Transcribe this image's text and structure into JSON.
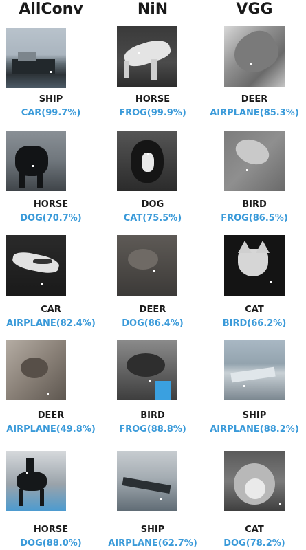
{
  "columns": [
    "AllConv",
    "NiN",
    "VGG"
  ],
  "rows": [
    [
      {
        "true_label": "SHIP",
        "predicted": "CAR(99.7%)",
        "scene": "ship-harbor"
      },
      {
        "true_label": "HORSE",
        "predicted": "FROG(99.9%)",
        "scene": "white-horse"
      },
      {
        "true_label": "DEER",
        "predicted": "AIRPLANE(85.3%)",
        "scene": "deer-closeup"
      }
    ],
    [
      {
        "true_label": "HORSE",
        "predicted": "DOG(70.7%)",
        "scene": "dark-horse"
      },
      {
        "true_label": "DOG",
        "predicted": "CAT(75.5%)",
        "scene": "black-white-dog"
      },
      {
        "true_label": "BIRD",
        "predicted": "FROG(86.5%)",
        "scene": "bird-head"
      }
    ],
    [
      {
        "true_label": "CAR",
        "predicted": "AIRPLANE(82.4%)",
        "scene": "white-car"
      },
      {
        "true_label": "DEER",
        "predicted": "DOG(86.4%)",
        "scene": "blurry-deer"
      },
      {
        "true_label": "CAT",
        "predicted": "BIRD(66.2%)",
        "scene": "cat-face-dark"
      }
    ],
    [
      {
        "true_label": "DEER",
        "predicted": "AIRPLANE(49.8%)",
        "scene": "deer-in-brush"
      },
      {
        "true_label": "BIRD",
        "predicted": "FROG(88.8%)",
        "scene": "bird-blue-patch"
      },
      {
        "true_label": "SHIP",
        "predicted": "AIRPLANE(88.2%)",
        "scene": "ship-at-sea"
      }
    ],
    [
      {
        "true_label": "HORSE",
        "predicted": "DOG(88.0%)",
        "scene": "horse-rider"
      },
      {
        "true_label": "SHIP",
        "predicted": "AIRPLANE(62.7%)",
        "scene": "ship-water"
      },
      {
        "true_label": "CAT",
        "predicted": "DOG(78.2%)",
        "scene": "cat-light-face"
      }
    ]
  ],
  "colors": {
    "predicted_text": "#3a9ad9",
    "true_text": "#1a1a1a"
  }
}
